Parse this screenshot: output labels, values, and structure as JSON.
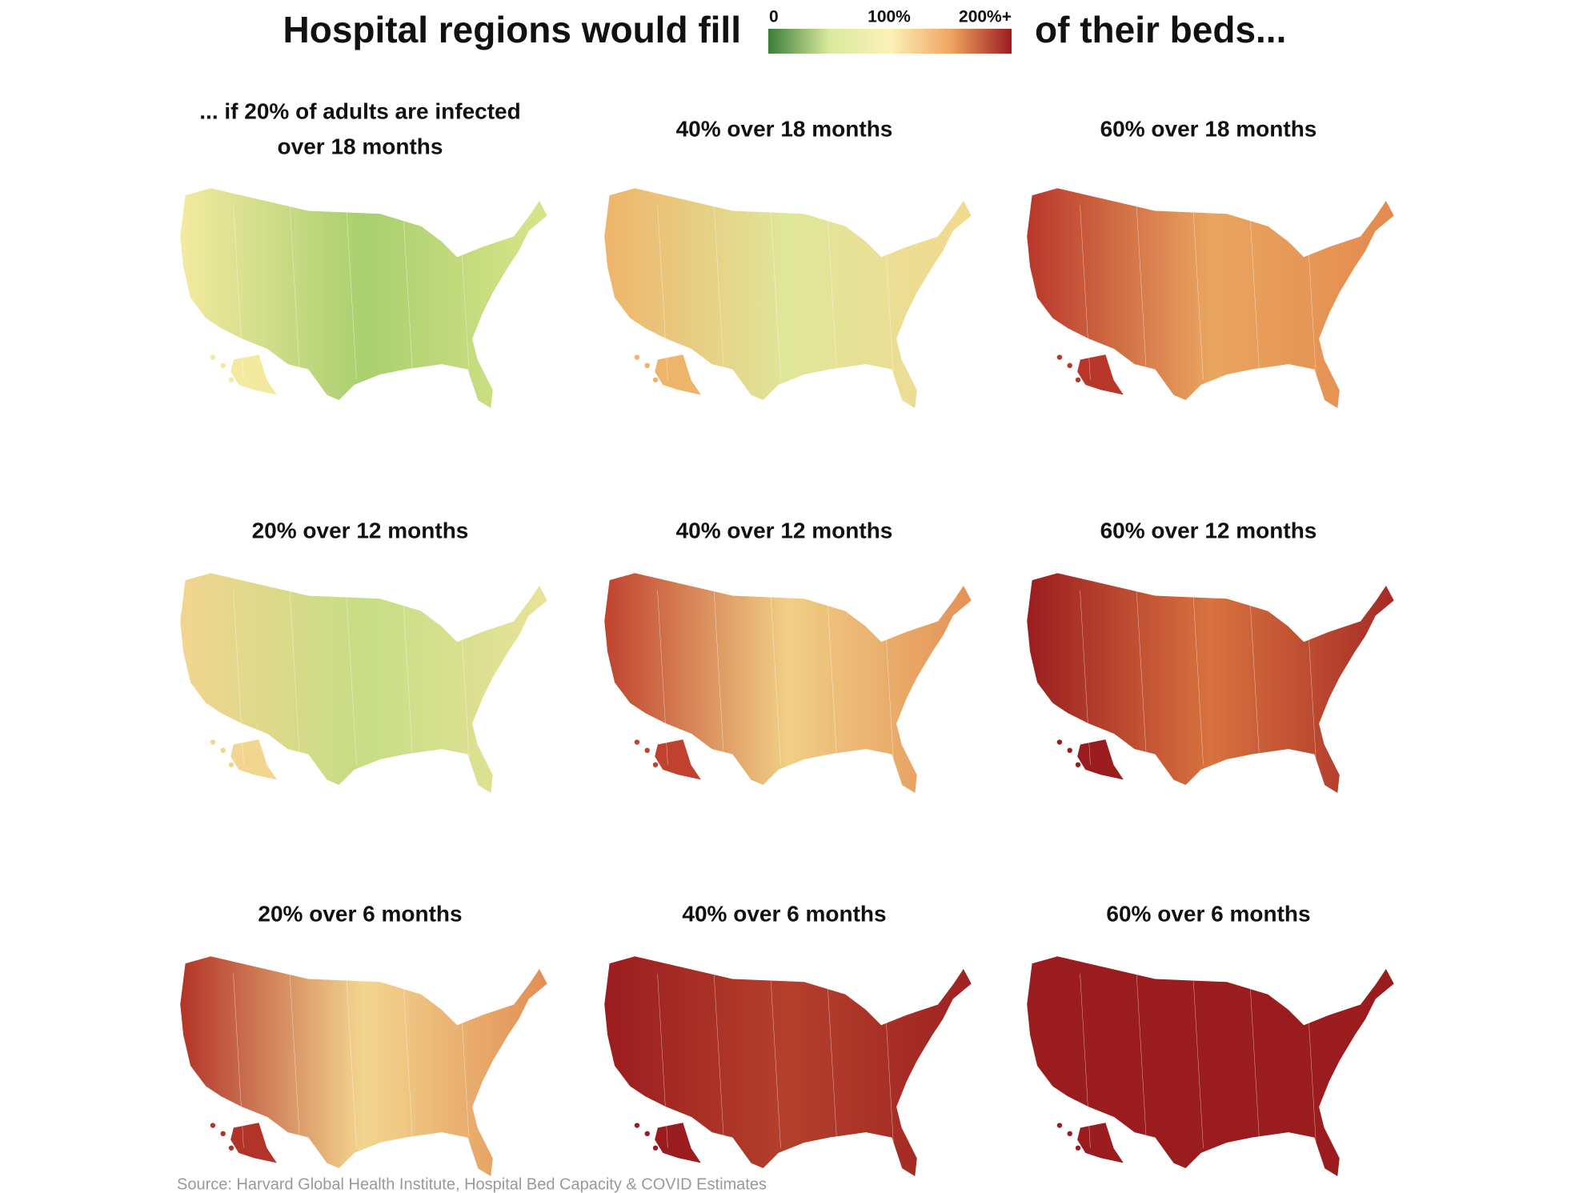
{
  "header": {
    "title_left": "Hospital regions would fill",
    "title_right": "of their beds...",
    "legend": {
      "labels": [
        "0",
        "100%",
        "200%+"
      ],
      "colors": [
        "#3a7d3a",
        "#d9ea9b",
        "#fbf1b8",
        "#f0a562",
        "#9b1c1f"
      ]
    }
  },
  "panels": [
    {
      "title_lines": [
        "... if 20% of adults are infected",
        "over 18 months"
      ],
      "colors": [
        "#f3eaa0",
        "#a9cf6e",
        "#d8e58a"
      ]
    },
    {
      "title_lines": [
        "40% over 18 months"
      ],
      "colors": [
        "#eeb46a",
        "#dfe79a",
        "#f3d890"
      ]
    },
    {
      "title_lines": [
        "60% over 18 months"
      ],
      "colors": [
        "#b9362a",
        "#e9a560",
        "#e48a4e"
      ]
    },
    {
      "title_lines": [
        "20% over 12 months"
      ],
      "colors": [
        "#f2d58f",
        "#c6dd84",
        "#e9e39a"
      ]
    },
    {
      "title_lines": [
        "40% over 12 months"
      ],
      "colors": [
        "#c0422e",
        "#f0cf85",
        "#e49157"
      ]
    },
    {
      "title_lines": [
        "60% over 12 months"
      ],
      "colors": [
        "#9b1c1f",
        "#d8733f",
        "#a52a25"
      ]
    },
    {
      "title_lines": [
        "20% over 6 months"
      ],
      "colors": [
        "#b23328",
        "#f3d68f",
        "#e28e55"
      ]
    },
    {
      "title_lines": [
        "40% over 6 months"
      ],
      "colors": [
        "#9b1c1f",
        "#b4402c",
        "#9e2222"
      ]
    },
    {
      "title_lines": [
        "60% over 6 months"
      ],
      "colors": [
        "#9b1c1f",
        "#9b1c1f",
        "#9b1c1f"
      ]
    }
  ],
  "source": "Source: Harvard Global Health Institute, Hospital Bed Capacity & COVID Estimates"
}
